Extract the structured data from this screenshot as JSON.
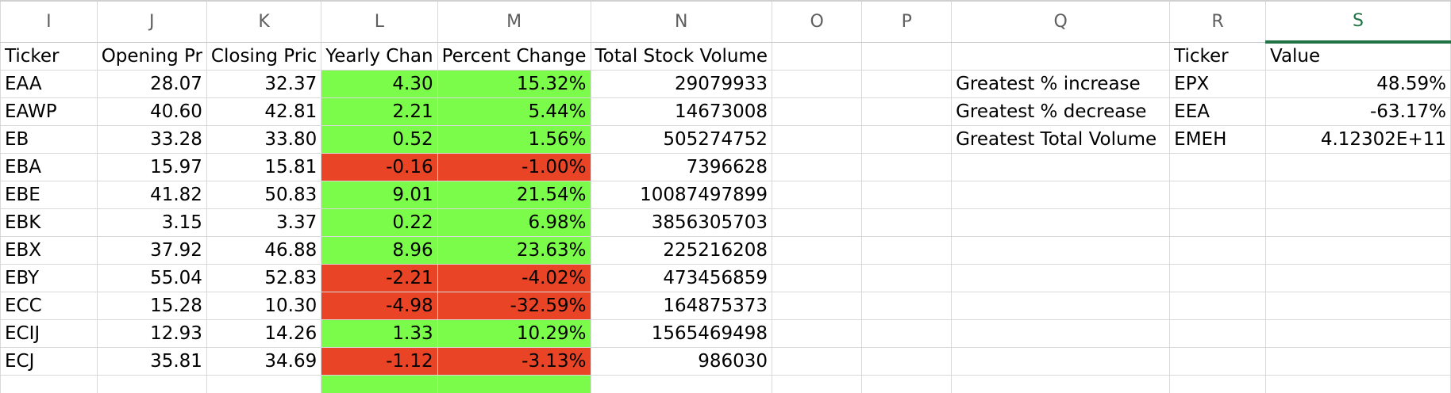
{
  "colors": {
    "positive": "#7cfc4a",
    "negative": "#ea4427",
    "active_header": "#217346"
  },
  "columns": [
    "I",
    "J",
    "K",
    "L",
    "M",
    "N",
    "O",
    "P",
    "Q",
    "R",
    "S"
  ],
  "active_column": "S",
  "headers": {
    "ticker": "Ticker",
    "opening": "Opening Pr",
    "closing": "Closing Pric",
    "yearly": "Yearly Chan",
    "percent": "Percent Change",
    "volume": "Total Stock Volume",
    "summary_ticker": "Ticker",
    "summary_value": "Value"
  },
  "rows": [
    {
      "ticker": "EAA",
      "open": "28.07",
      "close": "32.37",
      "yearly": "4.30",
      "percent": "15.32%",
      "volume": "29079933",
      "sign": "pos"
    },
    {
      "ticker": "EAWP",
      "open": "40.60",
      "close": "42.81",
      "yearly": "2.21",
      "percent": "5.44%",
      "volume": "14673008",
      "sign": "pos"
    },
    {
      "ticker": "EB",
      "open": "33.28",
      "close": "33.80",
      "yearly": "0.52",
      "percent": "1.56%",
      "volume": "505274752",
      "sign": "pos"
    },
    {
      "ticker": "EBA",
      "open": "15.97",
      "close": "15.81",
      "yearly": "-0.16",
      "percent": "-1.00%",
      "volume": "7396628",
      "sign": "neg"
    },
    {
      "ticker": "EBE",
      "open": "41.82",
      "close": "50.83",
      "yearly": "9.01",
      "percent": "21.54%",
      "volume": "10087497899",
      "sign": "pos"
    },
    {
      "ticker": "EBK",
      "open": "3.15",
      "close": "3.37",
      "yearly": "0.22",
      "percent": "6.98%",
      "volume": "3856305703",
      "sign": "pos"
    },
    {
      "ticker": "EBX",
      "open": "37.92",
      "close": "46.88",
      "yearly": "8.96",
      "percent": "23.63%",
      "volume": "225216208",
      "sign": "pos"
    },
    {
      "ticker": "EBY",
      "open": "55.04",
      "close": "52.83",
      "yearly": "-2.21",
      "percent": "-4.02%",
      "volume": "473456859",
      "sign": "neg"
    },
    {
      "ticker": "ECC",
      "open": "15.28",
      "close": "10.30",
      "yearly": "-4.98",
      "percent": "-32.59%",
      "volume": "164875373",
      "sign": "neg"
    },
    {
      "ticker": "ECIJ",
      "open": "12.93",
      "close": "14.26",
      "yearly": "1.33",
      "percent": "10.29%",
      "volume": "1565469498",
      "sign": "pos"
    },
    {
      "ticker": "ECJ",
      "open": "35.81",
      "close": "34.69",
      "yearly": "-1.12",
      "percent": "-3.13%",
      "volume": "986030",
      "sign": "neg"
    },
    {
      "ticker": "",
      "open": "",
      "close": "",
      "yearly": "",
      "percent": "",
      "volume": "",
      "sign": "pos"
    }
  ],
  "summary": [
    {
      "label": "Greatest % increase",
      "ticker": "EPX",
      "value": "48.59%"
    },
    {
      "label": "Greatest % decrease",
      "ticker": "EEA",
      "value": "-63.17%"
    },
    {
      "label": "Greatest Total Volume",
      "ticker": "EMEH",
      "value": "4.12302E+11"
    }
  ]
}
